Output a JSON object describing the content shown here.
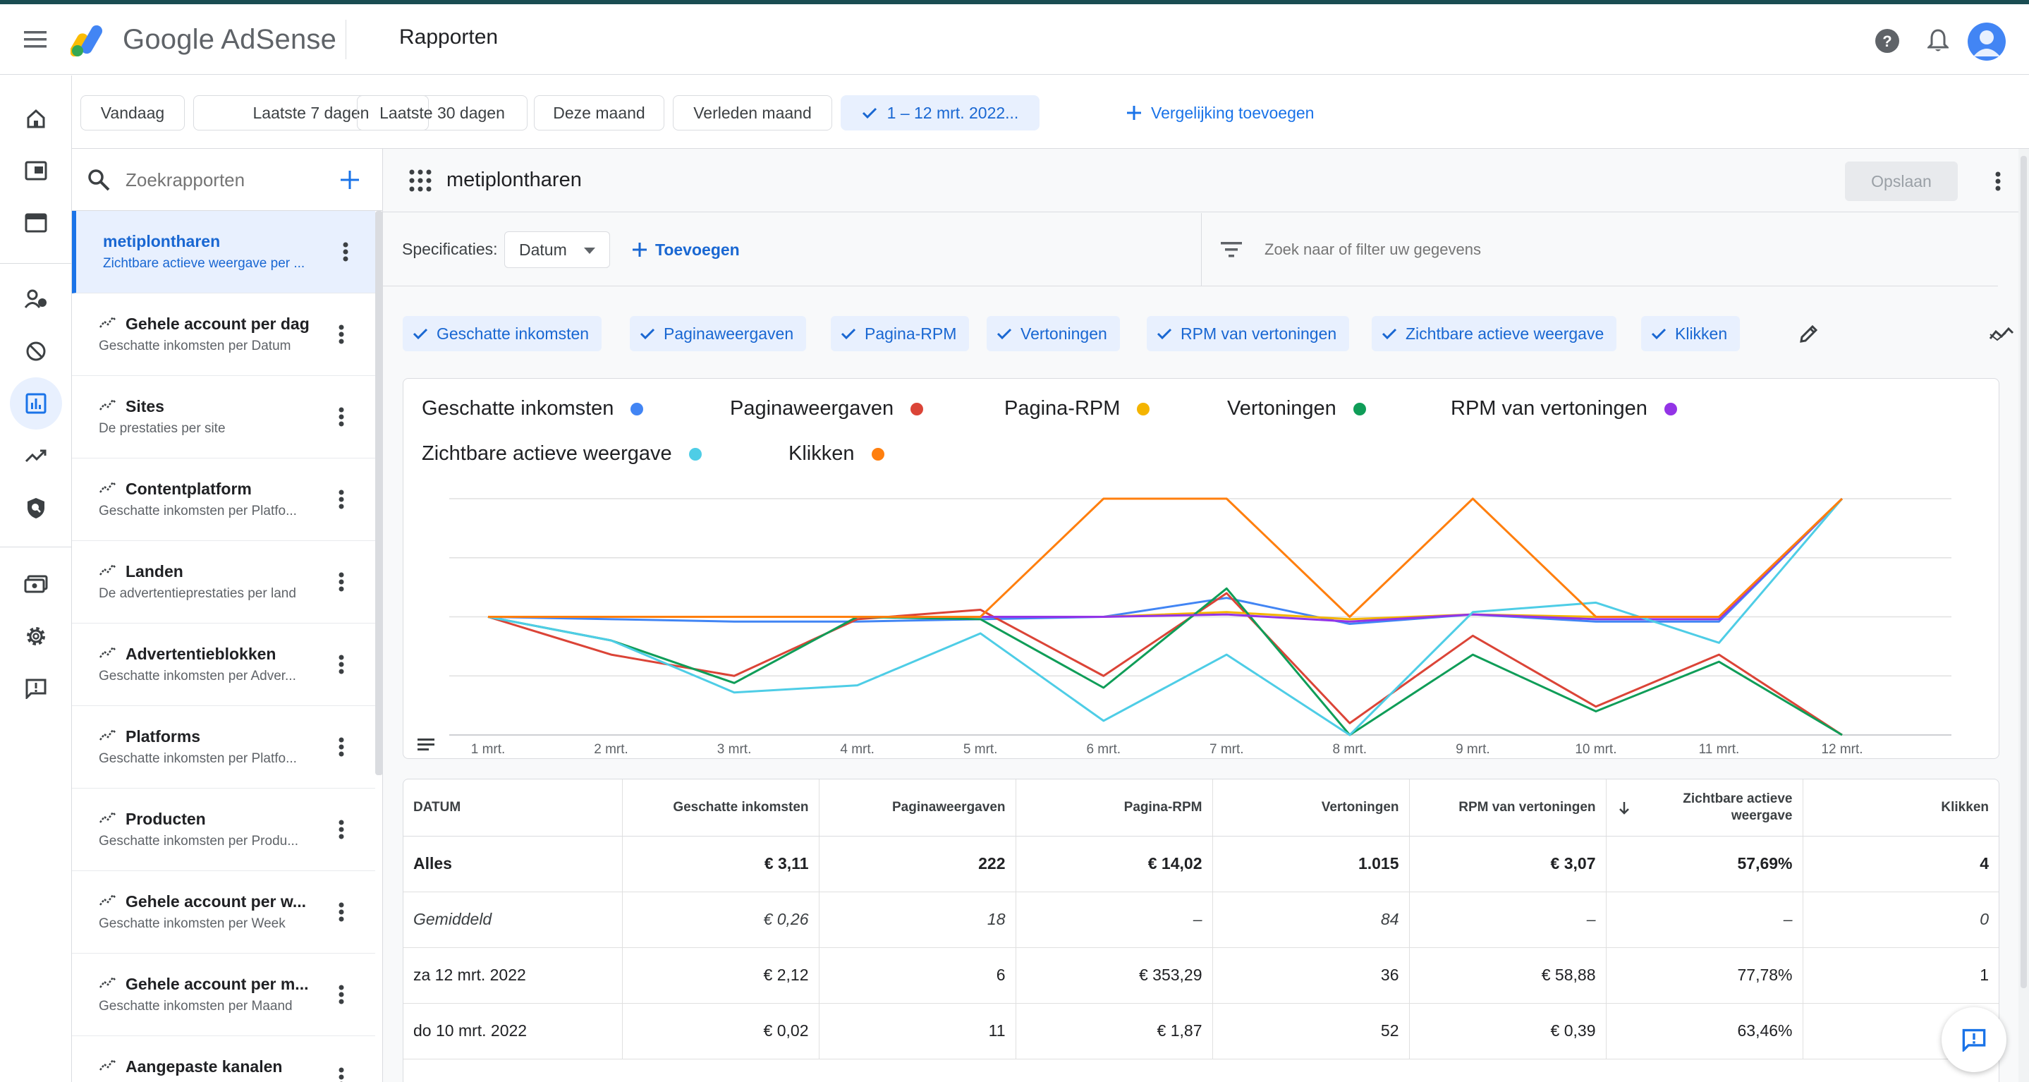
{
  "app": {
    "product_name": "Google AdSense",
    "page_title": "Rapporten"
  },
  "date_ranges": [
    {
      "label": "Vandaag",
      "selected": false
    },
    {
      "label": "Laatste 7 dagen",
      "selected": false
    },
    {
      "label": "Laatste 30 dagen",
      "selected": false
    },
    {
      "label": "Deze maand",
      "selected": false
    },
    {
      "label": "Verleden maand",
      "selected": false
    },
    {
      "label": "1 – 12 mrt. 2022...",
      "selected": true
    }
  ],
  "add_comparison_label": "Vergelijking toevoegen",
  "search": {
    "placeholder": "Zoekrapporten"
  },
  "reports": [
    {
      "title": "metiplontharen",
      "subtitle": "Zichtbare actieve weergave per ...",
      "active": true,
      "icon": "none"
    },
    {
      "title": "Gehele account per dag",
      "subtitle": "Geschatte inkomsten per Datum",
      "active": false,
      "icon": "sparkline-icon"
    },
    {
      "title": "Sites",
      "subtitle": "De prestaties per site",
      "active": false,
      "icon": "sparkline-icon"
    },
    {
      "title": "Contentplatform",
      "subtitle": "Geschatte inkomsten per Platfo...",
      "active": false,
      "icon": "sparkline-icon"
    },
    {
      "title": "Landen",
      "subtitle": "De advertentieprestaties per land",
      "active": false,
      "icon": "sparkline-icon"
    },
    {
      "title": "Advertentieblokken",
      "subtitle": "Geschatte inkomsten per Adver...",
      "active": false,
      "icon": "sparkline-icon"
    },
    {
      "title": "Platforms",
      "subtitle": "Geschatte inkomsten per Platfo...",
      "active": false,
      "icon": "sparkline-icon"
    },
    {
      "title": "Producten",
      "subtitle": "Geschatte inkomsten per Produ...",
      "active": false,
      "icon": "sparkline-icon"
    },
    {
      "title": "Gehele account per w...",
      "subtitle": "Geschatte inkomsten per Week",
      "active": false,
      "icon": "sparkline-icon"
    },
    {
      "title": "Gehele account per m...",
      "subtitle": "Geschatte inkomsten per Maand",
      "active": false,
      "icon": "sparkline-icon"
    },
    {
      "title": "Aangepaste kanalen",
      "subtitle": "",
      "active": false,
      "icon": "sparkline-icon"
    }
  ],
  "report": {
    "name": "metiplontharen",
    "save_label": "Opslaan",
    "spec_label": "Specificaties:",
    "spec_value": "Datum",
    "add_label": "Toevoegen",
    "filter_placeholder": "Zoek naar of filter uw gegevens"
  },
  "metric_chips": [
    "Geschatte inkomsten",
    "Paginaweergaven",
    "Pagina-RPM",
    "Vertoningen",
    "RPM van vertoningen",
    "Zichtbare actieve weergave",
    "Klikken"
  ],
  "chart_data": {
    "type": "line",
    "title": "",
    "xlabel": "",
    "ylabel": "",
    "grid": true,
    "y_axis_labels": "none",
    "note": "Each series is normalized on its own scale (no y-axis values shown); values are relative 0-1 levels as drawn.",
    "x": [
      "1 mrt.",
      "2 mrt.",
      "3 mrt.",
      "4 mrt.",
      "5 mrt.",
      "6 mrt.",
      "7 mrt.",
      "8 mrt.",
      "9 mrt.",
      "10 mrt.",
      "11 mrt.",
      "12 mrt."
    ],
    "ylim": [
      0,
      1
    ],
    "series": [
      {
        "name": "Geschatte inkomsten",
        "color": "#4285f4",
        "values": [
          0.5,
          0.49,
          0.48,
          0.48,
          0.49,
          0.5,
          0.58,
          0.47,
          0.51,
          0.48,
          0.48,
          1.0
        ]
      },
      {
        "name": "Paginaweergaven",
        "color": "#db4437",
        "values": [
          0.5,
          0.34,
          0.25,
          0.49,
          0.53,
          0.25,
          0.6,
          0.05,
          0.42,
          0.12,
          0.34,
          0.0
        ]
      },
      {
        "name": "Pagina-RPM",
        "color": "#f4b400",
        "values": [
          0.5,
          0.5,
          0.5,
          0.5,
          0.5,
          0.5,
          0.52,
          0.49,
          0.51,
          0.5,
          0.5,
          1.0
        ]
      },
      {
        "name": "Vertoningen",
        "color": "#0f9d58",
        "values": [
          0.5,
          0.4,
          0.22,
          0.5,
          0.49,
          0.2,
          0.62,
          0.0,
          0.34,
          0.1,
          0.31,
          0.0
        ]
      },
      {
        "name": "RPM van vertoningen",
        "color": "#9334e6",
        "values": [
          0.5,
          0.5,
          0.5,
          0.5,
          0.5,
          0.5,
          0.51,
          0.48,
          0.51,
          0.49,
          0.49,
          1.0
        ]
      },
      {
        "name": "Zichtbare actieve weergave",
        "color": "#4ecde6",
        "values": [
          0.5,
          0.4,
          0.18,
          0.21,
          0.43,
          0.06,
          0.34,
          0.0,
          0.52,
          0.56,
          0.39,
          1.0
        ]
      },
      {
        "name": "Klikken",
        "color": "#ff7f0e",
        "values": [
          0.5,
          0.5,
          0.5,
          0.5,
          0.5,
          1.0,
          1.0,
          0.5,
          1.0,
          0.5,
          0.5,
          1.0
        ]
      }
    ]
  },
  "table": {
    "headers": [
      "DATUM",
      "Geschatte inkomsten",
      "Paginaweergaven",
      "Pagina-RPM",
      "Vertoningen",
      "RPM van vertoningen",
      "Zichtbare actieve weergave",
      "Klikken"
    ],
    "sorted_column": 6,
    "rows": [
      [
        "Alles",
        "€ 3,11",
        "222",
        "€ 14,02",
        "1.015",
        "€ 3,07",
        "57,69%",
        "4"
      ],
      [
        "Gemiddeld",
        "€ 0,26",
        "18",
        "–",
        "84",
        "–",
        "–",
        "0"
      ],
      [
        "za 12 mrt. 2022",
        "€ 2,12",
        "6",
        "€ 353,29",
        "36",
        "€ 58,88",
        "77,78%",
        "1"
      ],
      [
        "do 10 mrt. 2022",
        "€ 0,02",
        "11",
        "€ 1,87",
        "52",
        "€ 0,39",
        "63,46%",
        ""
      ]
    ]
  }
}
